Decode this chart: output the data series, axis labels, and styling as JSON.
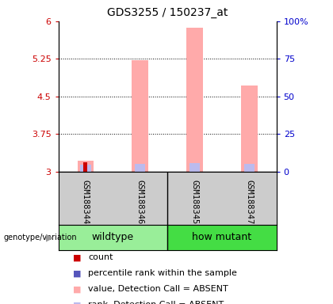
{
  "title": "GDS3255 / 150237_at",
  "samples": [
    "GSM188344",
    "GSM188346",
    "GSM188345",
    "GSM188347"
  ],
  "groups": [
    "wildtype",
    "wildtype",
    "how mutant",
    "how mutant"
  ],
  "group_labels": [
    "wildtype",
    "how mutant"
  ],
  "ylim_left": [
    3.0,
    6.0
  ],
  "ylim_right": [
    0,
    100
  ],
  "yticks_left": [
    3.0,
    3.75,
    4.5,
    5.25,
    6.0
  ],
  "ytick_labels_left": [
    "3",
    "3.75",
    "4.5",
    "5.25",
    "6"
  ],
  "yticks_right": [
    0,
    25,
    50,
    75,
    100
  ],
  "ytick_labels_right": [
    "0",
    "25",
    "50",
    "75",
    "100%"
  ],
  "dotted_lines": [
    3.75,
    4.5,
    5.25
  ],
  "bar_width": 0.3,
  "pink_values": [
    3.22,
    5.22,
    5.87,
    4.72
  ],
  "blue_values": [
    3.14,
    3.16,
    3.17,
    3.16
  ],
  "red_values": [
    3.19,
    3.0,
    3.0,
    3.0
  ],
  "red_color": "#CC0000",
  "blue_color": "#5555BB",
  "pink_color": "#FFAAAA",
  "rank_absent_color": "#BBBBEE",
  "left_label_color": "#CC0000",
  "right_label_color": "#0000CC",
  "gray_bg": "#CCCCCC",
  "wildtype_color": "#99EE99",
  "howmutant_color": "#44DD44",
  "legend_items": [
    {
      "label": "count",
      "color": "#CC0000"
    },
    {
      "label": "percentile rank within the sample",
      "color": "#5555BB"
    },
    {
      "label": "value, Detection Call = ABSENT",
      "color": "#FFAAAA"
    },
    {
      "label": "rank, Detection Call = ABSENT",
      "color": "#BBBBEE"
    }
  ],
  "title_fontsize": 10,
  "axis_fontsize": 8,
  "legend_fontsize": 8,
  "sample_fontsize": 7.5,
  "group_fontsize": 9
}
